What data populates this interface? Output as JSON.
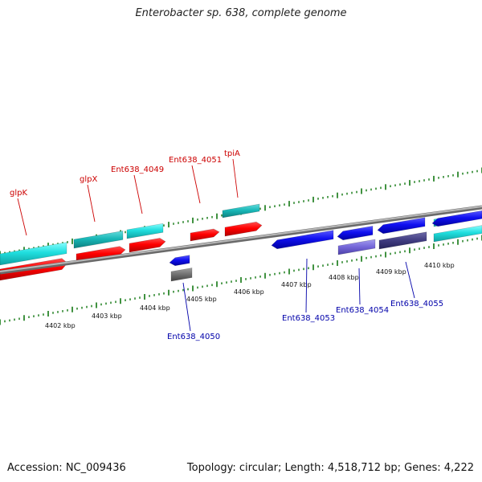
{
  "title": "Enterobacter sp. 638, complete genome",
  "accession": "Accession: NC_009436",
  "topology": "Topology: circular; Length: 4,518,712 bp; Genes: 4,222",
  "colors": {
    "top_label": "#cc0000",
    "bottom_label": "#0000aa",
    "ruler": "#117711",
    "backbone": "#8a8a8a"
  },
  "kbp_labels": [
    "4402 kbp",
    "4403 kbp",
    "4404 kbp",
    "4405 kbp",
    "4406 kbp",
    "4407 kbp",
    "4408 kbp",
    "4409 kbp",
    "4410 kbp"
  ],
  "gene_labels_top": [
    "glpK",
    "glpX",
    "Ent638_4049",
    "Ent638_4051",
    "tpiA"
  ],
  "gene_labels_bottom": [
    "Ent638_4050",
    "Ent638_4053",
    "Ent638_4054",
    "Ent638_4055"
  ]
}
